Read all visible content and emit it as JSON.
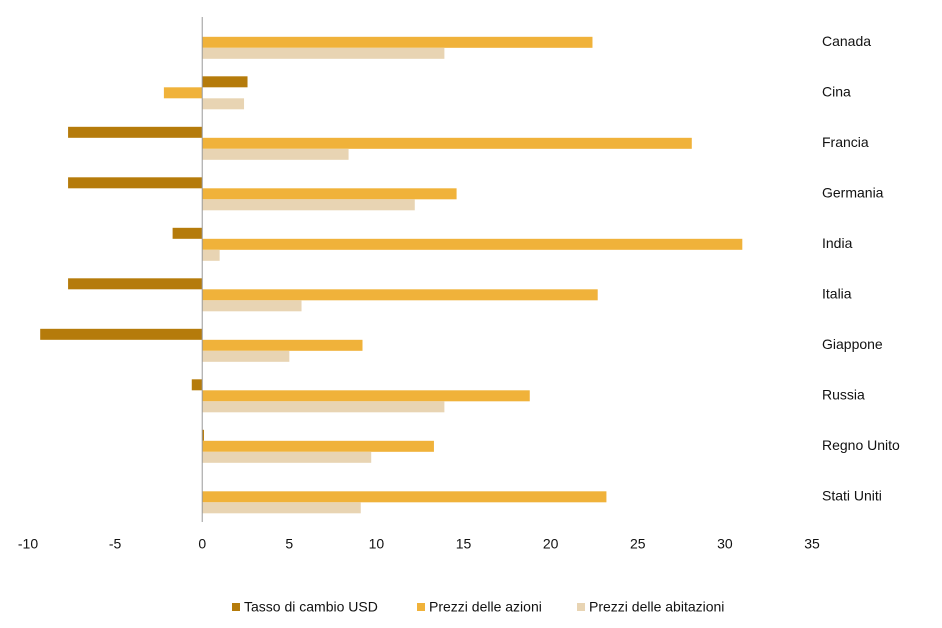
{
  "chart_data": {
    "type": "hbar",
    "categories": [
      "Canada",
      "Cina",
      "Francia",
      "Germania",
      "India",
      "Italia",
      "Giappone",
      "Russia",
      "Regno Unito",
      "Stati Uniti"
    ],
    "series": [
      {
        "name": "Tasso di cambio USD",
        "color": "#b57b0b",
        "values": [
          0,
          2.6,
          -7.7,
          -7.7,
          -1.7,
          -7.7,
          -9.3,
          -0.6,
          0.1,
          0
        ]
      },
      {
        "name": "Prezzi delle azioni",
        "color": "#f0b23a",
        "values": [
          22.4,
          -2.2,
          28.1,
          14.6,
          31.0,
          22.7,
          9.2,
          18.8,
          13.3,
          23.2
        ]
      },
      {
        "name": "Prezzi delle abitazioni",
        "color": "#e8d4b3",
        "values": [
          13.9,
          2.4,
          8.4,
          12.2,
          1.0,
          5.7,
          5.0,
          13.9,
          9.7,
          9.1
        ]
      }
    ],
    "xlim": [
      -10,
      35
    ],
    "xticks": [
      -10,
      -5,
      0,
      5,
      10,
      15,
      20,
      25,
      30,
      35
    ],
    "legend": "bottom"
  }
}
